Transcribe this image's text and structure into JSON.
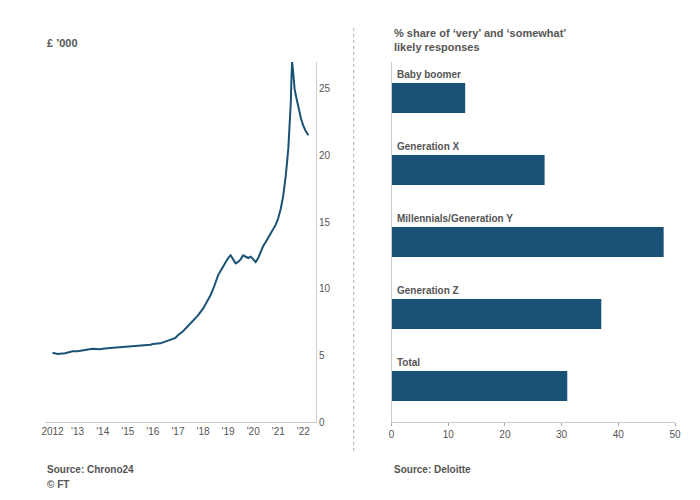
{
  "chart_data": [
    {
      "type": "line",
      "x": [
        2012.0,
        2012.2,
        2012.5,
        2012.8,
        2013.0,
        2013.3,
        2013.6,
        2013.9,
        2014.0,
        2014.3,
        2014.6,
        2014.9,
        2015.0,
        2015.3,
        2015.6,
        2015.9,
        2016.0,
        2016.3,
        2016.6,
        2016.9,
        2017.0,
        2017.2,
        2017.4,
        2017.6,
        2017.8,
        2018.0,
        2018.15,
        2018.3,
        2018.45,
        2018.6,
        2018.75,
        2018.9,
        2019.0,
        2019.1,
        2019.2,
        2019.3,
        2019.4,
        2019.5,
        2019.6,
        2019.7,
        2019.8,
        2019.9,
        2020.0,
        2020.1,
        2020.2,
        2020.3,
        2020.4,
        2020.5,
        2020.6,
        2020.7,
        2020.8,
        2020.9,
        2021.0,
        2021.1,
        2021.2,
        2021.3,
        2021.4,
        2021.45,
        2021.5,
        2021.52,
        2021.55,
        2021.58,
        2021.6,
        2021.65,
        2021.7,
        2021.75,
        2021.8,
        2021.85,
        2021.9,
        2021.95,
        2022.0,
        2022.1,
        2022.2
      ],
      "values": [
        5.2,
        5.1,
        5.15,
        5.3,
        5.3,
        5.4,
        5.5,
        5.45,
        5.5,
        5.55,
        5.6,
        5.6,
        5.65,
        5.7,
        5.75,
        5.8,
        5.85,
        5.9,
        6.1,
        6.3,
        6.5,
        6.8,
        7.2,
        7.6,
        8.0,
        8.5,
        9.0,
        9.5,
        10.2,
        11.0,
        11.5,
        12.0,
        12.3,
        12.5,
        12.2,
        11.9,
        12.0,
        12.2,
        12.5,
        12.4,
        12.3,
        12.4,
        12.2,
        12.0,
        12.3,
        12.8,
        13.2,
        13.5,
        13.8,
        14.2,
        14.5,
        14.8,
        15.3,
        16.0,
        17.0,
        18.5,
        20.5,
        22.0,
        24.0,
        25.5,
        27.0,
        26.5,
        25.8,
        25.0,
        24.5,
        24.0,
        23.5,
        23.2,
        22.8,
        22.5,
        22.2,
        21.8,
        21.5
      ],
      "color": "#1a5276",
      "ylabel": "£ ’000",
      "xlim": [
        2011.7,
        2022.5
      ],
      "xticks": [
        2012,
        {
          "value": 2013,
          "label": "'13"
        },
        {
          "value": 2014,
          "label": "'14"
        },
        {
          "value": 2015,
          "label": "'15"
        },
        {
          "value": 2016,
          "label": "'16"
        },
        {
          "value": 2017,
          "label": "'17"
        },
        {
          "value": 2018,
          "label": "'18"
        },
        {
          "value": 2019,
          "label": "'19"
        },
        {
          "value": 2020,
          "label": "'20"
        },
        {
          "value": 2021,
          "label": "'21"
        },
        {
          "value": 2022,
          "label": "'22"
        }
      ],
      "ylim": [
        0,
        27
      ],
      "yticks": [
        0,
        5,
        10,
        15,
        20,
        25
      ],
      "grid": false,
      "annotations": [
        "Source: Chrono24",
        "© FT"
      ]
    },
    {
      "type": "bar",
      "orientation": "horizontal",
      "title": "% share of ‘very’ and ‘somewhat’\nlikely responses",
      "categories": [
        "Baby boomer",
        "Generation X",
        "Millennials/Generation Y",
        "Generation Z",
        "Total"
      ],
      "values": [
        13,
        27,
        48,
        37,
        31
      ],
      "color": "#1a5276",
      "xlim": [
        0,
        50
      ],
      "xticks": [
        0,
        10,
        20,
        30,
        40,
        50
      ],
      "grid": false,
      "tick_labels": "x",
      "annotations": [
        "Source: Deloitte"
      ]
    }
  ]
}
